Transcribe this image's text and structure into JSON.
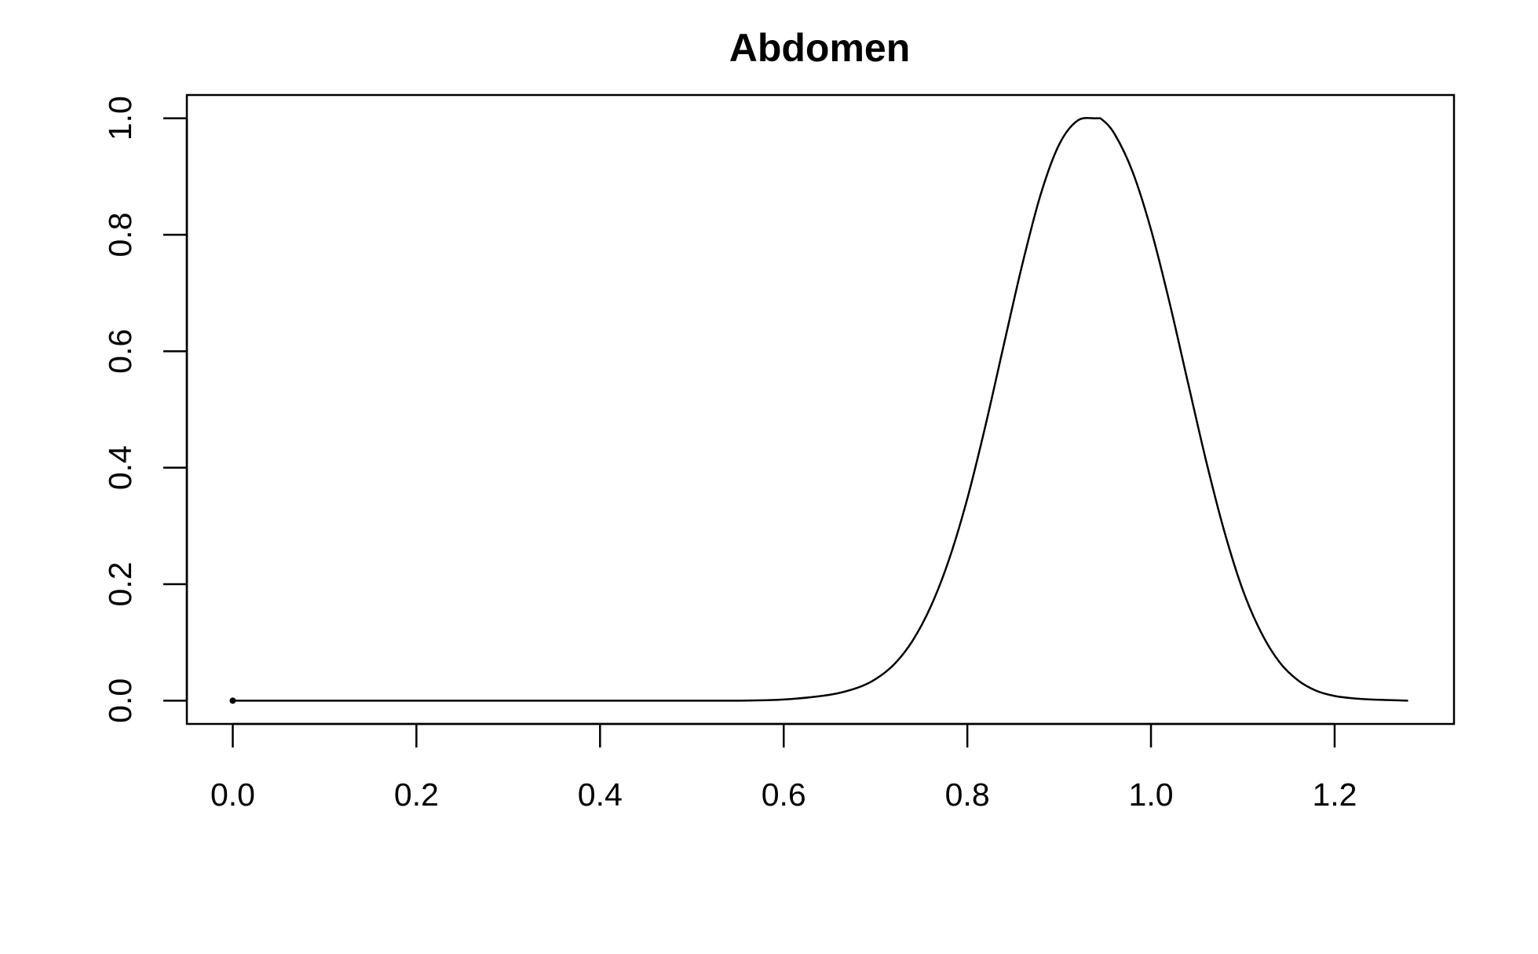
{
  "chart_data": {
    "type": "line",
    "title": "Abdomen",
    "xlabel": "",
    "ylabel": "",
    "xlim": [
      -0.05,
      1.33
    ],
    "ylim": [
      -0.04,
      1.04
    ],
    "grid": false,
    "legend": "none",
    "x_ticks": [
      "0.0",
      "0.2",
      "0.4",
      "0.6",
      "0.8",
      "1.0",
      "1.2"
    ],
    "y_ticks": [
      "0.0",
      "0.2",
      "0.4",
      "0.6",
      "0.8",
      "1.0"
    ],
    "series": [
      {
        "color": "#000000",
        "x": [
          0.0,
          0.1,
          0.2,
          0.3,
          0.4,
          0.5,
          0.55,
          0.6,
          0.65,
          0.68,
          0.7,
          0.72,
          0.74,
          0.76,
          0.78,
          0.8,
          0.82,
          0.84,
          0.86,
          0.88,
          0.9,
          0.92,
          0.94,
          0.945,
          0.96,
          0.98,
          1.0,
          1.02,
          1.04,
          1.06,
          1.08,
          1.1,
          1.12,
          1.14,
          1.16,
          1.18,
          1.2,
          1.22,
          1.24,
          1.26,
          1.28
        ],
        "y": [
          0.0,
          0.0,
          0.0,
          0.0,
          0.0,
          0.0,
          0.0,
          0.002,
          0.01,
          0.022,
          0.037,
          0.062,
          0.102,
          0.161,
          0.242,
          0.347,
          0.474,
          0.613,
          0.75,
          0.87,
          0.955,
          0.996,
          1.0,
          1.0,
          0.974,
          0.908,
          0.809,
          0.685,
          0.548,
          0.412,
          0.29,
          0.19,
          0.117,
          0.066,
          0.035,
          0.017,
          0.008,
          0.004,
          0.002,
          0.001,
          0.0
        ]
      }
    ],
    "point_markers": [
      {
        "x": 0.0,
        "y": 0.0
      }
    ]
  }
}
